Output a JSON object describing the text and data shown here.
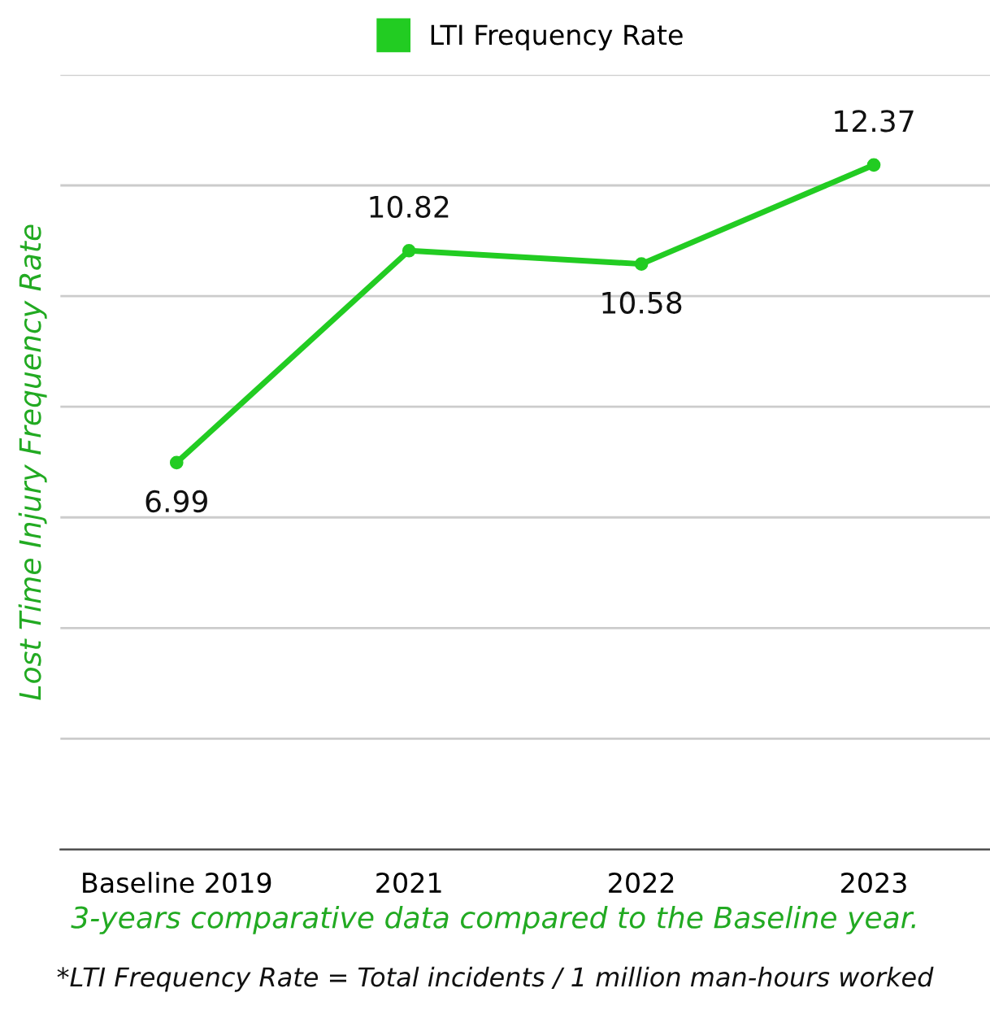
{
  "chart_data": {
    "type": "line",
    "ylabel": "Lost Time Injury Frequency Rate",
    "categories": [
      "Baseline 2019",
      "2021",
      "2022",
      "2023"
    ],
    "series": [
      {
        "name": "LTI Frequency Rate",
        "color": "#22cc22",
        "values": [
          6.99,
          10.82,
          10.58,
          12.37
        ]
      }
    ],
    "ylim": [
      0,
      14
    ],
    "yticks": [
      {
        "value": 0,
        "label": null
      },
      {
        "value": 2,
        "label": null
      },
      {
        "value": 4,
        "label": null
      },
      {
        "value": 6,
        "label": null
      },
      {
        "value": 8,
        "label": null
      },
      {
        "value": 10,
        "label": null
      },
      {
        "value": 12,
        "label": null
      },
      {
        "value": 14,
        "label": null
      }
    ],
    "tick_labels": "x",
    "grid": "y",
    "legend": "top",
    "marker": "circle",
    "line_style": "solid",
    "data_labels": true,
    "annotations": [
      "3-years comparative data compared to the Baseline year.",
      "*LTI Frequency Rate = Total incidents / 1 million man-hours worked"
    ]
  }
}
